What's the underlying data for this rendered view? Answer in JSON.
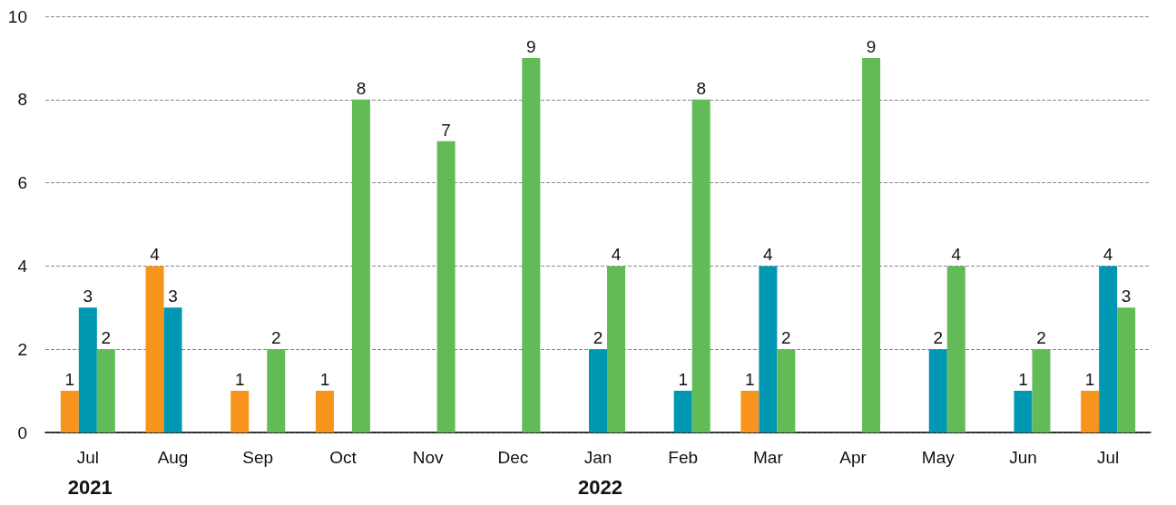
{
  "chart_data": {
    "type": "bar",
    "categories": [
      "Jul",
      "Aug",
      "Sep",
      "Oct",
      "Nov",
      "Dec",
      "Jan",
      "Feb",
      "Mar",
      "Apr",
      "May",
      "Jun",
      "Jul"
    ],
    "series": [
      {
        "color": "#f7941d",
        "values": [
          1,
          4,
          1,
          1,
          null,
          null,
          null,
          null,
          1,
          null,
          null,
          null,
          1
        ]
      },
      {
        "color": "#0097b2",
        "values": [
          3,
          3,
          null,
          null,
          null,
          null,
          2,
          1,
          4,
          null,
          2,
          1,
          4
        ]
      },
      {
        "color": "#62bb57",
        "values": [
          2,
          null,
          2,
          8,
          7,
          9,
          4,
          8,
          2,
          9,
          4,
          2,
          3
        ]
      }
    ],
    "ylim": [
      0,
      10
    ],
    "yticks": [
      0,
      2,
      4,
      6,
      8,
      10
    ],
    "grid": "y",
    "data_labels": true,
    "annotations": [
      "2021",
      "2022"
    ]
  }
}
